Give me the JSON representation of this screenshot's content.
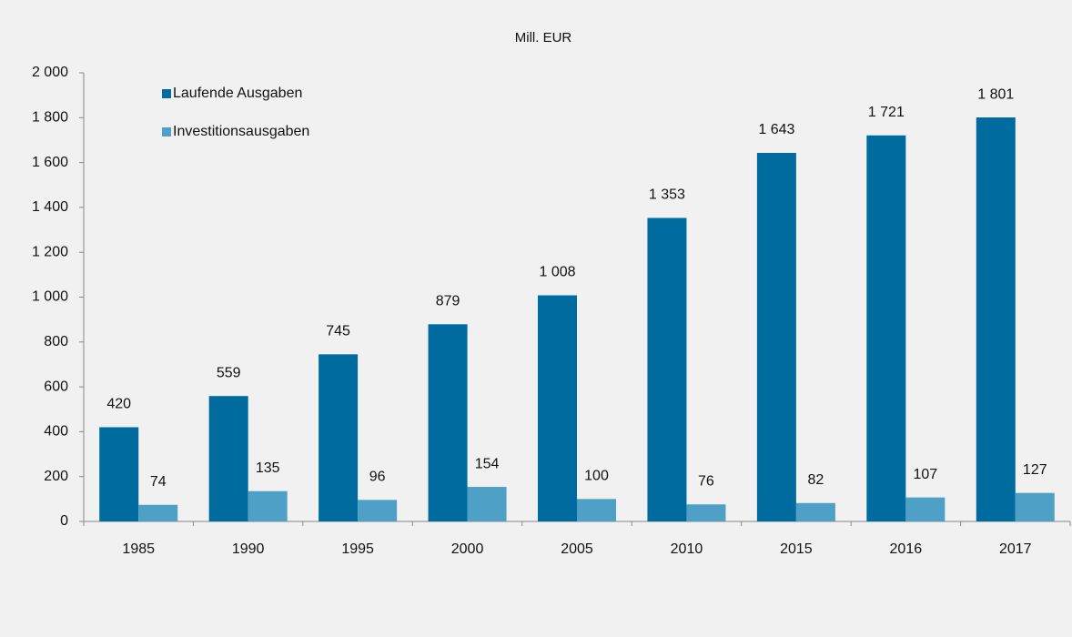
{
  "chart_data": {
    "type": "bar",
    "title": "Mill. EUR",
    "categories": [
      "1985",
      "1990",
      "1995",
      "2000",
      "2005",
      "2010",
      "2015",
      "2016",
      "2017"
    ],
    "series": [
      {
        "name": "Laufende Ausgaben",
        "color": "#006b9f",
        "values": [
          420,
          559,
          745,
          879,
          1008,
          1353,
          1643,
          1721,
          1801
        ],
        "value_labels": [
          "420",
          "559",
          "745",
          "879",
          "1 008",
          "1 353",
          "1 643",
          "1 721",
          "1 801"
        ]
      },
      {
        "name": "Investitionsausgaben",
        "color": "#4fa0c6",
        "values": [
          74,
          135,
          96,
          154,
          100,
          76,
          82,
          107,
          127
        ]
      }
    ],
    "ylim": [
      0,
      2000
    ],
    "yticks": [
      0,
      200,
      400,
      600,
      800,
      {
        "value": 1000,
        "label": "1 000"
      },
      {
        "value": 1200,
        "label": "1 200"
      },
      {
        "value": 1400,
        "label": "1 400"
      },
      {
        "value": 1600,
        "label": "1 600"
      },
      {
        "value": 1800,
        "label": "1 800"
      },
      {
        "value": 2000,
        "label": "2 000"
      }
    ],
    "legend": "upper-left",
    "grid": false
  }
}
